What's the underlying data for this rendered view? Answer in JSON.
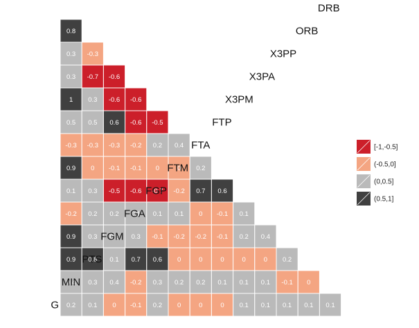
{
  "chart_data": {
    "type": "heatmap",
    "variables": [
      "G",
      "MIN",
      "PTS",
      "FGM",
      "FGA",
      "FGP",
      "FTM",
      "FTA",
      "FTP",
      "X3PM",
      "X3PA",
      "X3PP",
      "ORB",
      "DRB"
    ],
    "rows": [
      {
        "var": "G",
        "values": [
          0.2,
          0.1,
          0,
          -0.1,
          0.2,
          0,
          0,
          0,
          0.1,
          0.1,
          0.1,
          0.1,
          0.1
        ]
      },
      {
        "var": "MIN",
        "values": [
          0.4,
          0.3,
          0.4,
          -0.2,
          0.3,
          0.2,
          0.2,
          0.1,
          0.1,
          0.1,
          -0.1,
          0
        ]
      },
      {
        "var": "PTS",
        "values": [
          0.9,
          0.8,
          0.1,
          0.7,
          0.6,
          0,
          0,
          0,
          0,
          0,
          0.2
        ]
      },
      {
        "var": "FGM",
        "values": [
          0.9,
          0.3,
          0.3,
          0.3,
          -0.1,
          -0.2,
          -0.2,
          -0.1,
          0.2,
          0.4
        ]
      },
      {
        "var": "FGA",
        "values": [
          -0.2,
          0.2,
          0.2,
          0.1,
          0.1,
          0.1,
          0,
          -0.1,
          0.1
        ]
      },
      {
        "var": "FGP",
        "values": [
          0.1,
          0.3,
          -0.5,
          -0.6,
          -0.7,
          -0.2,
          0.7,
          0.6
        ]
      },
      {
        "var": "FTM",
        "values": [
          0.9,
          0,
          -0.1,
          -0.1,
          0,
          0,
          0.2
        ]
      },
      {
        "var": "FTA",
        "values": [
          -0.3,
          -0.3,
          -0.3,
          -0.2,
          0.2,
          0.4
        ]
      },
      {
        "var": "FTP",
        "values": [
          0.5,
          0.5,
          0.6,
          -0.6,
          -0.5
        ]
      },
      {
        "var": "X3PM",
        "values": [
          1,
          0.3,
          -0.6,
          -0.6
        ]
      },
      {
        "var": "X3PA",
        "values": [
          0.3,
          -0.7,
          -0.6
        ]
      },
      {
        "var": "X3PP",
        "values": [
          0.3,
          -0.3
        ]
      },
      {
        "var": "ORB",
        "values": [
          0.8
        ]
      },
      {
        "var": "DRB",
        "values": []
      }
    ],
    "legend": {
      "position": "right",
      "items": [
        {
          "label": "[-1,-0.5]",
          "color": "#cc1f2a"
        },
        {
          "label": "(-0.5,0]",
          "color": "#f4a582"
        },
        {
          "label": "(0,0.5]",
          "color": "#bababa"
        },
        {
          "label": "(0.5,1]",
          "color": "#404040"
        }
      ]
    },
    "title": "",
    "grid": false
  }
}
